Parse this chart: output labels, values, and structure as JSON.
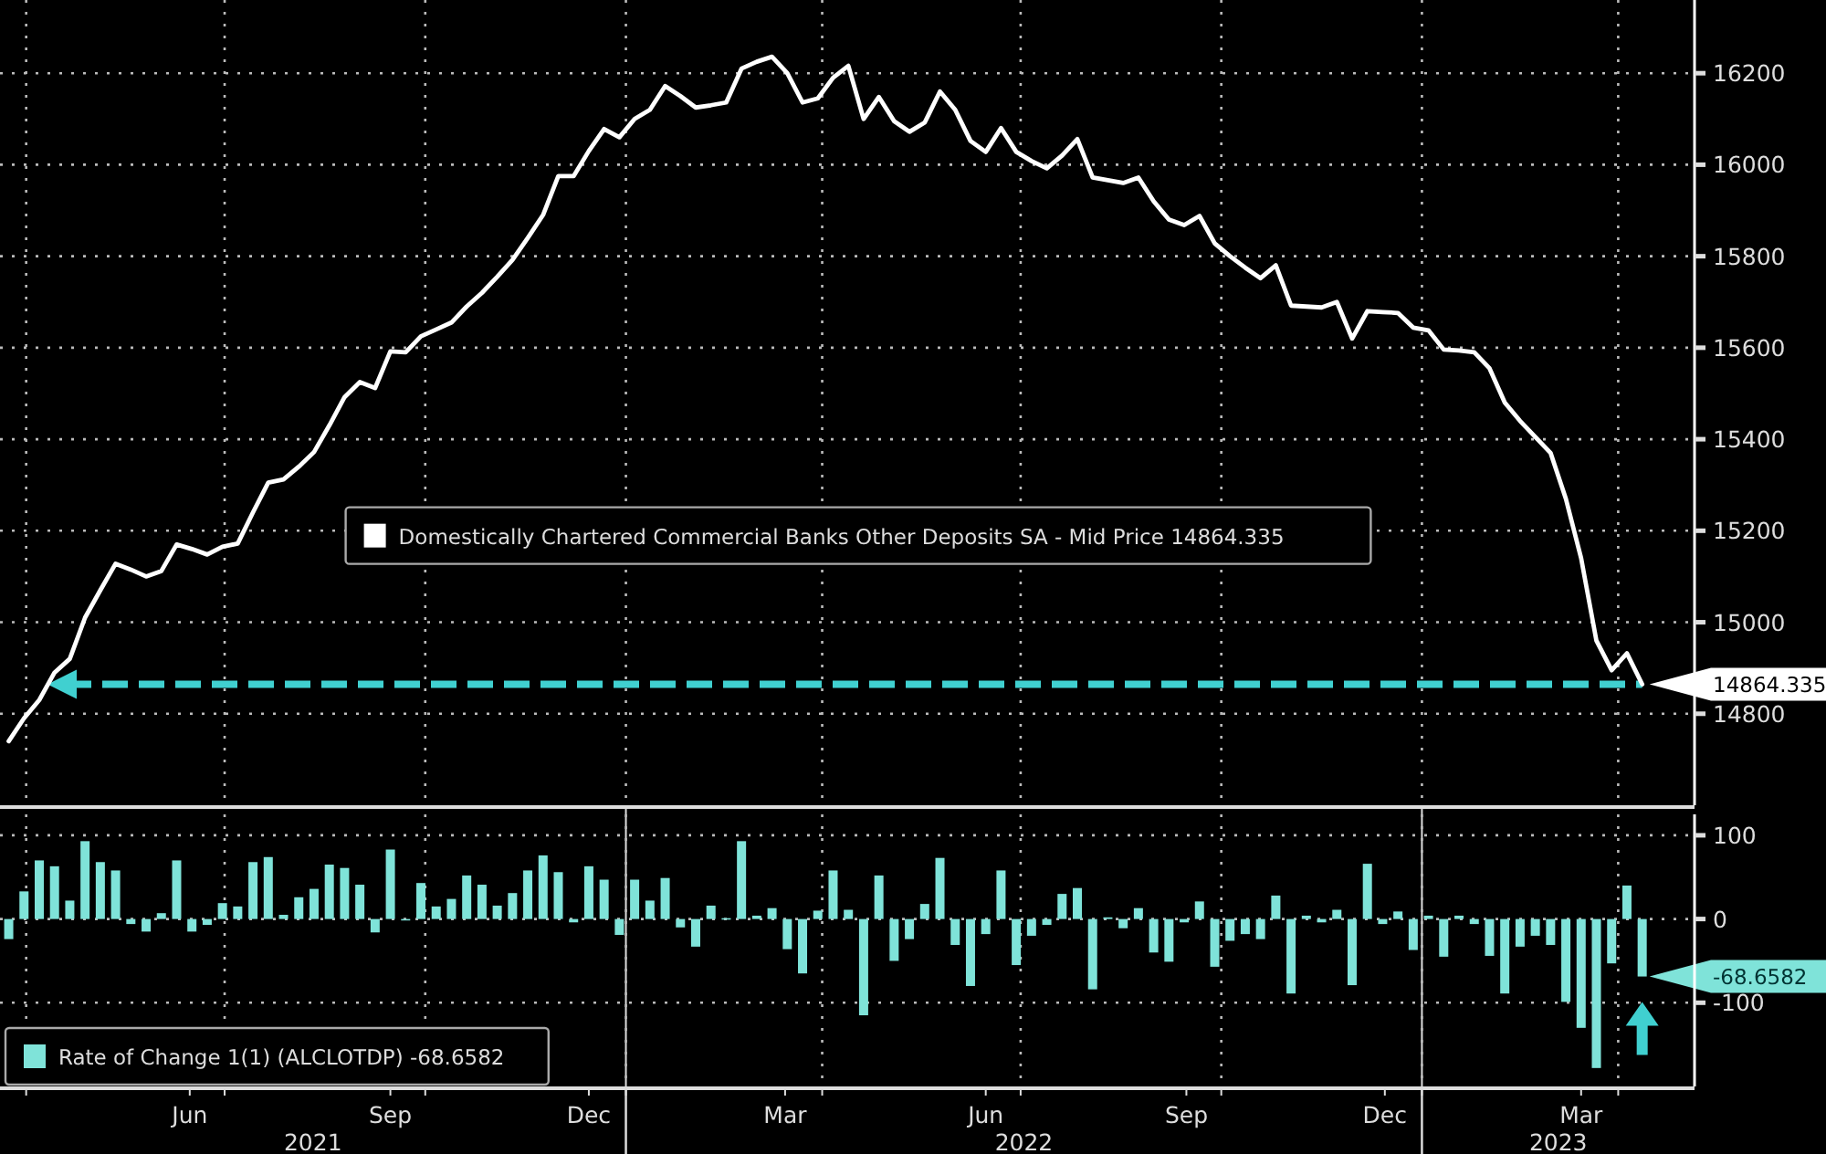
{
  "chart_data": [
    {
      "type": "line",
      "xlim": [
        "2021-03-20",
        "2023-05-06"
      ],
      "xticks": [
        {
          "value": "2021-04-01",
          "label": null
        },
        {
          "value": "2021-07-01",
          "label": null
        },
        {
          "value": "2021-10-01",
          "label": null
        },
        {
          "value": "2022-01-01",
          "label": null
        },
        {
          "value": "2022-04-01",
          "label": null
        },
        {
          "value": "2022-07-01",
          "label": null
        },
        {
          "value": "2022-10-01",
          "label": null
        },
        {
          "value": "2023-01-01",
          "label": null
        },
        {
          "value": "2023-04-01",
          "label": null
        }
      ],
      "ylim": [
        14600,
        16360
      ],
      "yticks": [
        14800,
        15000,
        15200,
        15400,
        15600,
        15800,
        16000,
        16200
      ],
      "grid": true,
      "tick_labels": "y",
      "legend": "center",
      "x": [
        "2021-03-24",
        "2021-03-31",
        "2021-04-07",
        "2021-04-14",
        "2021-04-21",
        "2021-04-28",
        "2021-05-05",
        "2021-05-12",
        "2021-05-19",
        "2021-05-26",
        "2021-06-02",
        "2021-06-09",
        "2021-06-16",
        "2021-06-23",
        "2021-06-30",
        "2021-07-07",
        "2021-07-14",
        "2021-07-21",
        "2021-07-28",
        "2021-08-04",
        "2021-08-11",
        "2021-08-18",
        "2021-08-25",
        "2021-09-01",
        "2021-09-08",
        "2021-09-15",
        "2021-09-22",
        "2021-09-29",
        "2021-10-06",
        "2021-10-13",
        "2021-10-20",
        "2021-10-27",
        "2021-11-03",
        "2021-11-10",
        "2021-11-17",
        "2021-11-24",
        "2021-12-01",
        "2021-12-08",
        "2021-12-15",
        "2021-12-22",
        "2021-12-29",
        "2022-01-05",
        "2022-01-12",
        "2022-01-19",
        "2022-01-26",
        "2022-02-02",
        "2022-02-09",
        "2022-02-16",
        "2022-02-23",
        "2022-03-02",
        "2022-03-09",
        "2022-03-16",
        "2022-03-23",
        "2022-03-30",
        "2022-04-06",
        "2022-04-13",
        "2022-04-20",
        "2022-04-27",
        "2022-05-04",
        "2022-05-11",
        "2022-05-18",
        "2022-05-25",
        "2022-06-01",
        "2022-06-08",
        "2022-06-15",
        "2022-06-22",
        "2022-06-29",
        "2022-07-06",
        "2022-07-13",
        "2022-07-20",
        "2022-07-27",
        "2022-08-03",
        "2022-08-10",
        "2022-08-17",
        "2022-08-24",
        "2022-08-31",
        "2022-09-07",
        "2022-09-14",
        "2022-09-21",
        "2022-09-28",
        "2022-10-05",
        "2022-10-12",
        "2022-10-19",
        "2022-10-26",
        "2022-11-02",
        "2022-11-09",
        "2022-11-16",
        "2022-11-23",
        "2022-11-30",
        "2022-12-07",
        "2022-12-14",
        "2022-12-21",
        "2022-12-28",
        "2023-01-04",
        "2023-01-11",
        "2023-01-18",
        "2023-01-25",
        "2023-02-01",
        "2023-02-08",
        "2023-02-15",
        "2023-02-22",
        "2023-03-01",
        "2023-03-08",
        "2023-03-15",
        "2023-03-22",
        "2023-03-29",
        "2023-04-05",
        "2023-04-12"
      ],
      "series": [
        {
          "name": "Domestically Chartered Commercial Banks Other Deposits SA - Mid Price 14864.335",
          "color": "#ffffff",
          "values": [
            14740,
            14790,
            14830,
            14890,
            14920,
            15010,
            15070,
            15128,
            15115,
            15100,
            15112,
            15170,
            15160,
            15148,
            15165,
            15172,
            15240,
            15305,
            15312,
            15340,
            15372,
            15430,
            15492,
            15525,
            15512,
            15592,
            15590,
            15625,
            15640,
            15655,
            15690,
            15720,
            15755,
            15792,
            15840,
            15890,
            15975,
            15975,
            16030,
            16078,
            16060,
            16100,
            16120,
            16172,
            16150,
            16125,
            16130,
            16136,
            16210,
            16225,
            16236,
            16200,
            16136,
            16145,
            16190,
            16216,
            16100,
            16148,
            16095,
            16072,
            16092,
            16160,
            16120,
            16052,
            16028,
            16080,
            16028,
            16008,
            15992,
            16020,
            16056,
            15972,
            15966,
            15960,
            15972,
            15920,
            15880,
            15868,
            15888,
            15828,
            15800,
            15775,
            15752,
            15780,
            15692,
            15690,
            15688,
            15700,
            15620,
            15680,
            15678,
            15676,
            15644,
            15638,
            15596,
            15594,
            15590,
            15555,
            15480,
            15440,
            15405,
            15370,
            15270,
            15140,
            14960,
            14895,
            14932,
            14864.335
          ],
          "value_labels": [
            null,
            null,
            null,
            null,
            null,
            null,
            null,
            null,
            null,
            null,
            null,
            null,
            null,
            null,
            null,
            null,
            null,
            null,
            null,
            null,
            null,
            null,
            null,
            null,
            null,
            null,
            null,
            null,
            null,
            null,
            null,
            null,
            null,
            null,
            null,
            null,
            null,
            null,
            null,
            null,
            null,
            null,
            null,
            null,
            null,
            null,
            null,
            null,
            null,
            null,
            null,
            null,
            null,
            null,
            null,
            null,
            null,
            null,
            null,
            null,
            null,
            null,
            null,
            null,
            null,
            null,
            null,
            null,
            null,
            null,
            null,
            null,
            null,
            null,
            null,
            null,
            null,
            null,
            null,
            null,
            null,
            null,
            null,
            null,
            null,
            null,
            null,
            null,
            null,
            null,
            null,
            null,
            null,
            null,
            null,
            null,
            null,
            null,
            null,
            null,
            null,
            null,
            null,
            null,
            null,
            null,
            null,
            "14864.335"
          ]
        }
      ],
      "ref_lines": [
        {
          "axis": "y",
          "value": 14864.335,
          "color": "#40d0d0",
          "line_style": "dashed"
        }
      ]
    },
    {
      "type": "bar",
      "xlim": [
        "2021-03-20",
        "2023-05-06"
      ],
      "xticks": [
        {
          "value": "2021-04-01",
          "label": null
        },
        {
          "value": "2021-06-15",
          "label": "Jun"
        },
        {
          "value": "2021-07-01",
          "label": null
        },
        {
          "value": "2021-09-15",
          "label": "Sep"
        },
        {
          "value": "2021-10-01",
          "label": null
        },
        {
          "value": "2021-12-15",
          "label": "Dec"
        },
        {
          "value": "2022-01-01",
          "label": null
        },
        {
          "value": "2022-03-15",
          "label": "Mar"
        },
        {
          "value": "2022-04-01",
          "label": null
        },
        {
          "value": "2022-06-15",
          "label": "Jun"
        },
        {
          "value": "2022-07-01",
          "label": null
        },
        {
          "value": "2022-09-15",
          "label": "Sep"
        },
        {
          "value": "2022-10-01",
          "label": null
        },
        {
          "value": "2022-12-15",
          "label": "Dec"
        },
        {
          "value": "2023-01-01",
          "label": null
        },
        {
          "value": "2023-03-15",
          "label": "Mar"
        },
        {
          "value": "2023-04-01",
          "label": null
        }
      ],
      "ylim": [
        -200,
        125
      ],
      "yticks": [
        -100,
        0,
        100
      ],
      "grid": true,
      "legend": "bottom left",
      "annotations": [
        "2021",
        "2022",
        "2023"
      ],
      "x": [
        "2021-03-24",
        "2021-03-31",
        "2021-04-07",
        "2021-04-14",
        "2021-04-21",
        "2021-04-28",
        "2021-05-05",
        "2021-05-12",
        "2021-05-19",
        "2021-05-26",
        "2021-06-02",
        "2021-06-09",
        "2021-06-16",
        "2021-06-23",
        "2021-06-30",
        "2021-07-07",
        "2021-07-14",
        "2021-07-21",
        "2021-07-28",
        "2021-08-04",
        "2021-08-11",
        "2021-08-18",
        "2021-08-25",
        "2021-09-01",
        "2021-09-08",
        "2021-09-15",
        "2021-09-22",
        "2021-09-29",
        "2021-10-06",
        "2021-10-13",
        "2021-10-20",
        "2021-10-27",
        "2021-11-03",
        "2021-11-10",
        "2021-11-17",
        "2021-11-24",
        "2021-12-01",
        "2021-12-08",
        "2021-12-15",
        "2021-12-22",
        "2021-12-29",
        "2022-01-05",
        "2022-01-12",
        "2022-01-19",
        "2022-01-26",
        "2022-02-02",
        "2022-02-09",
        "2022-02-16",
        "2022-02-23",
        "2022-03-02",
        "2022-03-09",
        "2022-03-16",
        "2022-03-23",
        "2022-03-30",
        "2022-04-06",
        "2022-04-13",
        "2022-04-20",
        "2022-04-27",
        "2022-05-04",
        "2022-05-11",
        "2022-05-18",
        "2022-05-25",
        "2022-06-01",
        "2022-06-08",
        "2022-06-15",
        "2022-06-22",
        "2022-06-29",
        "2022-07-06",
        "2022-07-13",
        "2022-07-20",
        "2022-07-27",
        "2022-08-03",
        "2022-08-10",
        "2022-08-17",
        "2022-08-24",
        "2022-08-31",
        "2022-09-07",
        "2022-09-14",
        "2022-09-21",
        "2022-09-28",
        "2022-10-05",
        "2022-10-12",
        "2022-10-19",
        "2022-10-26",
        "2022-11-02",
        "2022-11-09",
        "2022-11-16",
        "2022-11-23",
        "2022-11-30",
        "2022-12-07",
        "2022-12-14",
        "2022-12-21",
        "2022-12-28",
        "2023-01-04",
        "2023-01-11",
        "2023-01-18",
        "2023-01-25",
        "2023-02-01",
        "2023-02-08",
        "2023-02-15",
        "2023-02-22",
        "2023-03-01",
        "2023-03-08",
        "2023-03-15",
        "2023-03-22",
        "2023-03-29",
        "2023-04-05",
        "2023-04-12"
      ],
      "series": [
        {
          "name": "Rate of Change 1(1) (ALCLOTDP) -68.6582",
          "color": "#7fe3d9",
          "values": [
            -24,
            33,
            70,
            63,
            22,
            93,
            68,
            58,
            -6,
            -15,
            7,
            70,
            -15,
            -7,
            19,
            15,
            68,
            74,
            5,
            26,
            36,
            65,
            61,
            41,
            -16,
            83,
            -1,
            43,
            15,
            24,
            52,
            41,
            16,
            31,
            58,
            76,
            56,
            -4,
            63,
            47,
            -19,
            47,
            22,
            49,
            -10,
            -33,
            16,
            1,
            93,
            4,
            13,
            -36,
            -65,
            10,
            58,
            11,
            -115,
            52,
            -50,
            -24,
            18,
            73,
            -31,
            -80,
            -18,
            58,
            -55,
            -20,
            -7,
            30,
            37,
            -84,
            2,
            -11,
            13,
            -40,
            -51,
            -4,
            21,
            -57,
            -26,
            -18,
            -24,
            28,
            -89,
            4,
            -4,
            11,
            -79,
            66,
            -6,
            9,
            -37,
            4,
            -45,
            4,
            -6,
            -44,
            -89,
            -33,
            -20,
            -31,
            -99,
            -130,
            -178,
            -53,
            40,
            -68.6582
          ],
          "value_labels": [
            null,
            null,
            null,
            null,
            null,
            null,
            null,
            null,
            null,
            null,
            null,
            null,
            null,
            null,
            null,
            null,
            null,
            null,
            null,
            null,
            null,
            null,
            null,
            null,
            null,
            null,
            null,
            null,
            null,
            null,
            null,
            null,
            null,
            null,
            null,
            null,
            null,
            null,
            null,
            null,
            null,
            null,
            null,
            null,
            null,
            null,
            null,
            null,
            null,
            null,
            null,
            null,
            null,
            null,
            null,
            null,
            null,
            null,
            null,
            null,
            null,
            null,
            null,
            null,
            null,
            null,
            null,
            null,
            null,
            null,
            null,
            null,
            null,
            null,
            null,
            null,
            null,
            null,
            null,
            null,
            null,
            null,
            null,
            null,
            null,
            null,
            null,
            null,
            null,
            null,
            null,
            null,
            null,
            null,
            null,
            null,
            null,
            null,
            null,
            null,
            null,
            null,
            null,
            null,
            null,
            null,
            null,
            "-68.6582"
          ]
        }
      ]
    }
  ]
}
